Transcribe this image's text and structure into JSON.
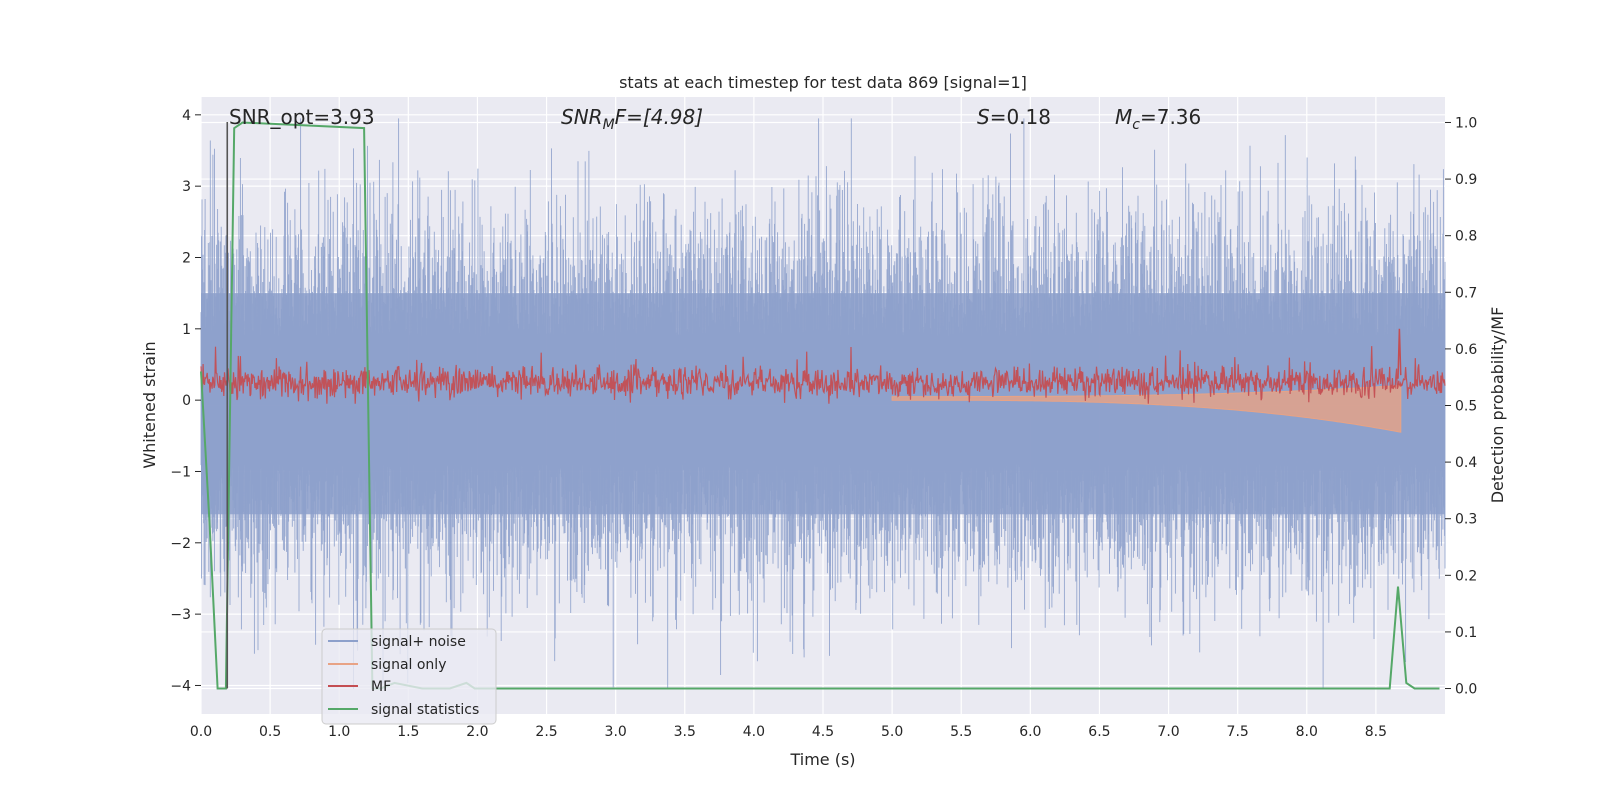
{
  "chart_data": {
    "type": "line",
    "title": "stats at each timestep for test data 869 [signal=1]",
    "xlabel": "Time (s)",
    "ylabel": "Whitened strain",
    "ylabel_right": "Detection probability/MF",
    "xlim": [
      0.0,
      9.0
    ],
    "ylim": [
      -4.4,
      4.25
    ],
    "ylim_right": [
      -0.045,
      1.045
    ],
    "grid": true,
    "legend_position": "lower-left",
    "x_ticks": [
      "0.0",
      "0.5",
      "1.0",
      "1.5",
      "2.0",
      "2.5",
      "3.0",
      "3.5",
      "4.0",
      "4.5",
      "5.0",
      "5.5",
      "6.0",
      "6.5",
      "7.0",
      "7.5",
      "8.0",
      "8.5"
    ],
    "y_ticks": [
      "4",
      "3",
      "2",
      "1",
      "0",
      "−1",
      "−2",
      "−3",
      "−4"
    ],
    "y_ticks_right": [
      "1.0",
      "0.9",
      "0.8",
      "0.7",
      "0.6",
      "0.5",
      "0.4",
      "0.3",
      "0.2",
      "0.1",
      "0.0"
    ],
    "annotations": {
      "snr_opt": "SNR_opt=3.93",
      "snr_mf_italic": "SNR",
      "snr_mf_sub": "M",
      "snr_mf_rest": "F=[4.98]",
      "s_italic": "S",
      "s_rest": "=0.18",
      "mc_italic": "M",
      "mc_sub": "c",
      "mc_rest": "=7.36"
    },
    "vertical_marker_x": 0.19,
    "series": [
      {
        "name": "signal+ noise",
        "color": "#8da0cb",
        "axis": "left",
        "description_level": "noise band approx ±1.5, peaks to ±4"
      },
      {
        "name": "signal only",
        "color": "#e8a385",
        "axis": "left",
        "chirp_end": 8.68,
        "chirp_peak_amplitude": 0.45
      },
      {
        "name": "MF",
        "color": "#c44e52",
        "axis": "left",
        "center": 0.25,
        "spread": 0.2
      },
      {
        "name": "signal statistics",
        "color": "#55a868",
        "axis": "right",
        "x": [
          0.0,
          0.06,
          0.12,
          0.18,
          0.24,
          0.3,
          1.18,
          1.24,
          1.3,
          1.4,
          1.6,
          1.8,
          1.92,
          1.98,
          2.04,
          8.6,
          8.66,
          8.72,
          8.78,
          8.84,
          8.96
        ],
        "y": [
          0.56,
          0.3,
          0.0,
          0.0,
          0.99,
          1.0,
          0.99,
          0.0,
          0.0,
          0.01,
          0.0,
          0.0,
          0.01,
          0.0,
          0.0,
          0.0,
          0.18,
          0.01,
          0.0,
          0.0,
          0.0
        ]
      }
    ]
  },
  "legend": {
    "items": [
      "signal+ noise",
      "signal only",
      "MF",
      "signal statistics"
    ],
    "colors": [
      "#8da0cb",
      "#e8a385",
      "#c44e52",
      "#55a868"
    ]
  }
}
